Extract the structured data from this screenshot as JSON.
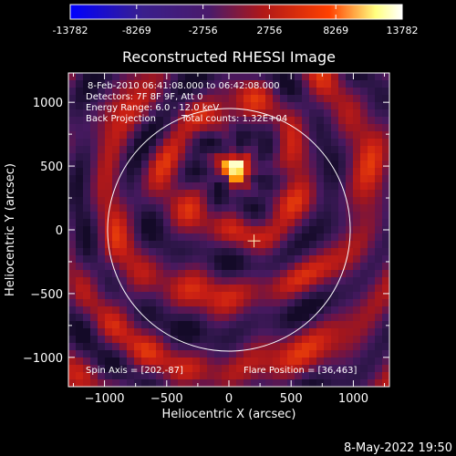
{
  "colorbar": {
    "ticks": [
      "-13782",
      "-8269",
      "-2756",
      "2756",
      "8269",
      "13782"
    ],
    "tick_values": [
      -13782,
      -8269,
      -2756,
      2756,
      8269,
      13782
    ],
    "range": [
      -13782,
      13782
    ],
    "colors": [
      "#0000ff",
      "#3a1f8c",
      "#4a1a6a",
      "#b01818",
      "#ff4000",
      "#ffff80",
      "#ffffff"
    ]
  },
  "chart_data": {
    "type": "heatmap",
    "title": "Reconstructed RHESSI Image",
    "xlabel": "Heliocentric X (arcsec)",
    "ylabel": "Heliocentric Y (arcsec)",
    "xlim": [
      -1290,
      1290
    ],
    "ylim": [
      -1230,
      1230
    ],
    "xticks": [
      -1000,
      -500,
      0,
      500,
      1000
    ],
    "yticks": [
      -1000,
      -500,
      0,
      500,
      1000
    ],
    "xtick_labels": [
      "−1000",
      "−500",
      "0",
      "500",
      "1000"
    ],
    "ytick_labels": [
      "−1000",
      "−500",
      "0",
      "500",
      "1000"
    ],
    "source_peak": [
      55,
      480
    ],
    "solar_radius": 975,
    "spin_axis_marker": [
      202,
      -87
    ],
    "annotations": {
      "line1": "8-Feb-2010 06:41:08.000 to 06:42:08.000",
      "line2": "Detectors: 7F 8F 9F, Att 0",
      "line3": "Energy Range: 6.0 - 12.0 keV",
      "line4_left": "Back Projection",
      "line4_right": "Total counts: 1.32E+04",
      "bottom_left": "Spin Axis = [202,-87]",
      "bottom_right": "Flare Position = [36,463]"
    }
  },
  "footer": {
    "date": "8-May-2022 19:50"
  }
}
